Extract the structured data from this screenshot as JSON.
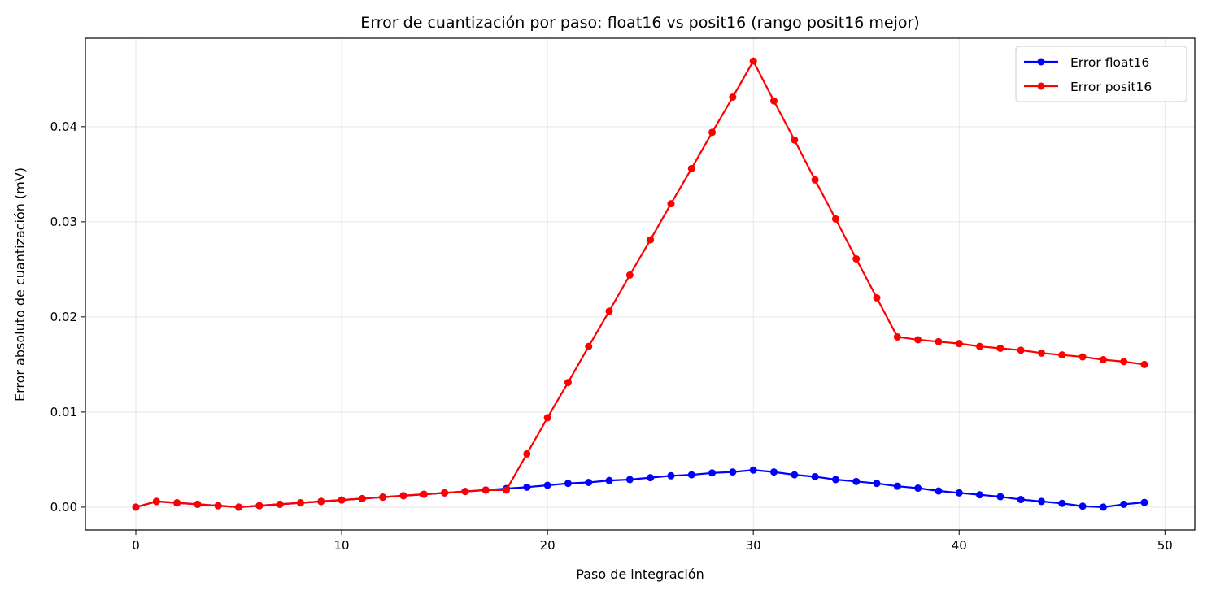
{
  "chart_data": {
    "type": "line",
    "title": "Error de cuantización por paso: float16 vs posit16 (rango posit16 mejor)",
    "xlabel": "Paso de integración",
    "ylabel": "Error absoluto de cuantización (mV)",
    "xlim": [
      -2.45,
      51.45
    ],
    "ylim": [
      -0.0024,
      0.0493
    ],
    "xticks": [
      0,
      10,
      20,
      30,
      40,
      50
    ],
    "xtick_labels": [
      "0",
      "10",
      "20",
      "30",
      "40",
      "50"
    ],
    "yticks": [
      0.0,
      0.01,
      0.02,
      0.03,
      0.04
    ],
    "ytick_labels": [
      "0.00",
      "0.01",
      "0.02",
      "0.03",
      "0.04"
    ],
    "grid": true,
    "legend_position": "top-right",
    "x": [
      0,
      1,
      2,
      3,
      4,
      5,
      6,
      7,
      8,
      9,
      10,
      11,
      12,
      13,
      14,
      15,
      16,
      17,
      18,
      19,
      20,
      21,
      22,
      23,
      24,
      25,
      26,
      27,
      28,
      29,
      30,
      31,
      32,
      33,
      34,
      35,
      36,
      37,
      38,
      39,
      40,
      41,
      42,
      43,
      44,
      45,
      46,
      47,
      48,
      49
    ],
    "series": [
      {
        "name": "Error float16",
        "color": "#0000ff",
        "values": [
          0.0,
          0.0006,
          0.00045,
          0.0003,
          0.00015,
          0.0,
          0.00015,
          0.0003,
          0.00045,
          0.0006,
          0.00075,
          0.0009,
          0.00105,
          0.0012,
          0.00135,
          0.0015,
          0.00165,
          0.0018,
          0.00195,
          0.0021,
          0.0023,
          0.0025,
          0.0026,
          0.0028,
          0.0029,
          0.0031,
          0.0033,
          0.0034,
          0.0036,
          0.0037,
          0.0039,
          0.0037,
          0.0034,
          0.0032,
          0.0029,
          0.0027,
          0.0025,
          0.0022,
          0.002,
          0.0017,
          0.0015,
          0.0013,
          0.0011,
          0.0008,
          0.0006,
          0.0004,
          0.0001,
          0.0,
          0.0003,
          0.0005
        ]
      },
      {
        "name": "Error posit16",
        "color": "#ff0000",
        "values": [
          0.0,
          0.0006,
          0.00045,
          0.0003,
          0.00015,
          0.0,
          0.00015,
          0.0003,
          0.00045,
          0.0006,
          0.00075,
          0.0009,
          0.00105,
          0.0012,
          0.00135,
          0.0015,
          0.00165,
          0.0018,
          0.0018,
          0.0056,
          0.0094,
          0.0131,
          0.0169,
          0.0206,
          0.0244,
          0.0281,
          0.0319,
          0.0356,
          0.0394,
          0.0431,
          0.0469,
          0.0427,
          0.0386,
          0.0344,
          0.0303,
          0.0261,
          0.022,
          0.0179,
          0.0176,
          0.0174,
          0.0172,
          0.0169,
          0.0167,
          0.0165,
          0.0162,
          0.016,
          0.0158,
          0.0155,
          0.0153,
          0.015
        ]
      }
    ]
  }
}
